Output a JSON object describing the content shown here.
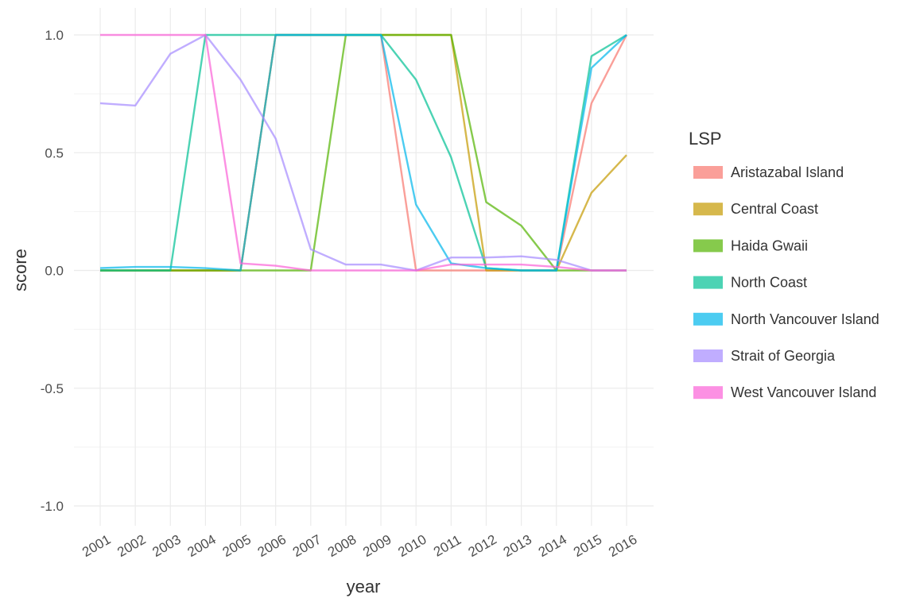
{
  "chart_data": {
    "type": "line",
    "title": "",
    "xlabel": "year",
    "ylabel": "score",
    "x": [
      2001,
      2002,
      2003,
      2004,
      2005,
      2006,
      2007,
      2008,
      2009,
      2010,
      2011,
      2012,
      2013,
      2014,
      2015,
      2016
    ],
    "x_tick_labels": [
      "2001",
      "2002",
      "2003",
      "2004",
      "2005",
      "2006",
      "2007",
      "2008",
      "2009",
      "2010",
      "2011",
      "2012",
      "2013",
      "2014",
      "2015",
      "2016"
    ],
    "ylim": [
      -1.0,
      1.0
    ],
    "y_ticks": [
      -1.0,
      -0.5,
      0.0,
      0.5,
      1.0
    ],
    "y_tick_labels": [
      "-1.0",
      "-0.5",
      "0.0",
      "0.5",
      "1.0"
    ],
    "grid": true,
    "legend": {
      "title": "LSP",
      "placement": "right"
    },
    "series": [
      {
        "name": "Aristazabal Island",
        "color": "#F8766D",
        "values": [
          0,
          0,
          0,
          0,
          0,
          1,
          1,
          1,
          1,
          0,
          0,
          0,
          0,
          0,
          0.71,
          1.0
        ]
      },
      {
        "name": "Central Coast",
        "color": "#C49A00",
        "values": [
          0,
          0,
          0,
          0,
          0,
          1,
          1,
          1,
          1,
          1,
          1,
          0,
          0,
          0,
          0.33,
          0.49
        ]
      },
      {
        "name": "Haida Gwaii",
        "color": "#53B400",
        "values": [
          0,
          0,
          0,
          0,
          0,
          0,
          0,
          1,
          1,
          1,
          1,
          0.29,
          0.19,
          0,
          0,
          0
        ]
      },
      {
        "name": "North Coast",
        "color": "#00C094",
        "values": [
          0,
          0,
          0,
          1,
          1,
          1,
          1,
          1,
          1,
          0.81,
          0.48,
          0.01,
          0,
          0,
          0.91,
          1.0
        ]
      },
      {
        "name": "North Vancouver Island",
        "color": "#00B6EB",
        "values": [
          0.01,
          0.015,
          0.015,
          0.01,
          0,
          1,
          1,
          1,
          1,
          0.28,
          0.03,
          0.01,
          0,
          0,
          0.86,
          1.0
        ]
      },
      {
        "name": "Strait of Georgia",
        "color": "#A58AFF",
        "values": [
          0.71,
          0.7,
          0.92,
          1.0,
          0.81,
          0.56,
          0.09,
          0.025,
          0.025,
          0,
          0.055,
          0.055,
          0.06,
          0.045,
          0,
          0
        ]
      },
      {
        "name": "West Vancouver Island",
        "color": "#FB61D7",
        "values": [
          1,
          1,
          1,
          1,
          0.03,
          0.02,
          0,
          0,
          0,
          0,
          0.025,
          0.025,
          0.025,
          0.015,
          0,
          0
        ]
      }
    ]
  }
}
